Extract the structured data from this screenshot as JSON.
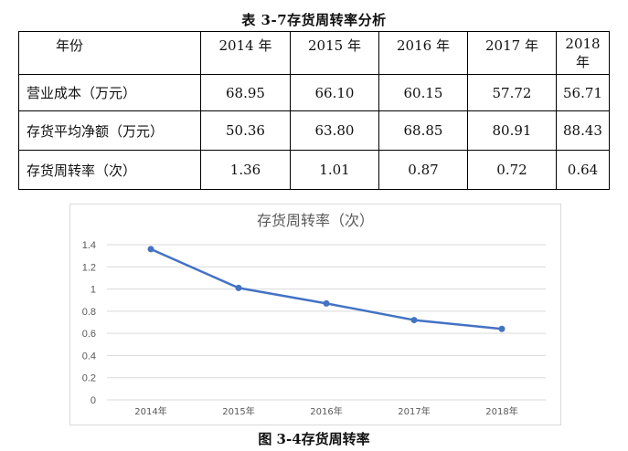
{
  "table": {
    "title": "表 3-7存货周转率分析",
    "header": [
      "年份",
      "2014 年",
      "2015 年",
      "2016 年",
      "2017 年",
      "2018 年"
    ],
    "rows": [
      {
        "label": "营业成本（万元）",
        "values": [
          "68.95",
          "66.10",
          "60.15",
          "57.72",
          "56.71"
        ]
      },
      {
        "label": "存货平均净额（万元）",
        "values": [
          "50.36",
          "63.80",
          "68.85",
          "80.91",
          "88.43"
        ]
      },
      {
        "label": "存货周转率（次）",
        "values": [
          "1.36",
          "1.01",
          "0.87",
          "0.72",
          "0.64"
        ]
      }
    ]
  },
  "chart_data": {
    "type": "line",
    "title": "存货周转率（次）",
    "categories": [
      "2014年",
      "2015年",
      "2016年",
      "2017年",
      "2018年"
    ],
    "series": [
      {
        "values": [
          1.36,
          1.01,
          0.87,
          0.72,
          0.64
        ],
        "color": "#4472c4"
      }
    ],
    "ylim": [
      0,
      1.4
    ],
    "yticks": [
      0,
      0.2,
      0.4,
      0.6,
      0.8,
      1,
      1.2,
      1.4
    ],
    "ytick_labels": [
      "0",
      "0.2",
      "0.4",
      "0.6",
      "0.8",
      "1",
      "1.2",
      "1.4"
    ],
    "grid": true,
    "legend": "none"
  },
  "figure_caption": "图 3-4存货周转率"
}
